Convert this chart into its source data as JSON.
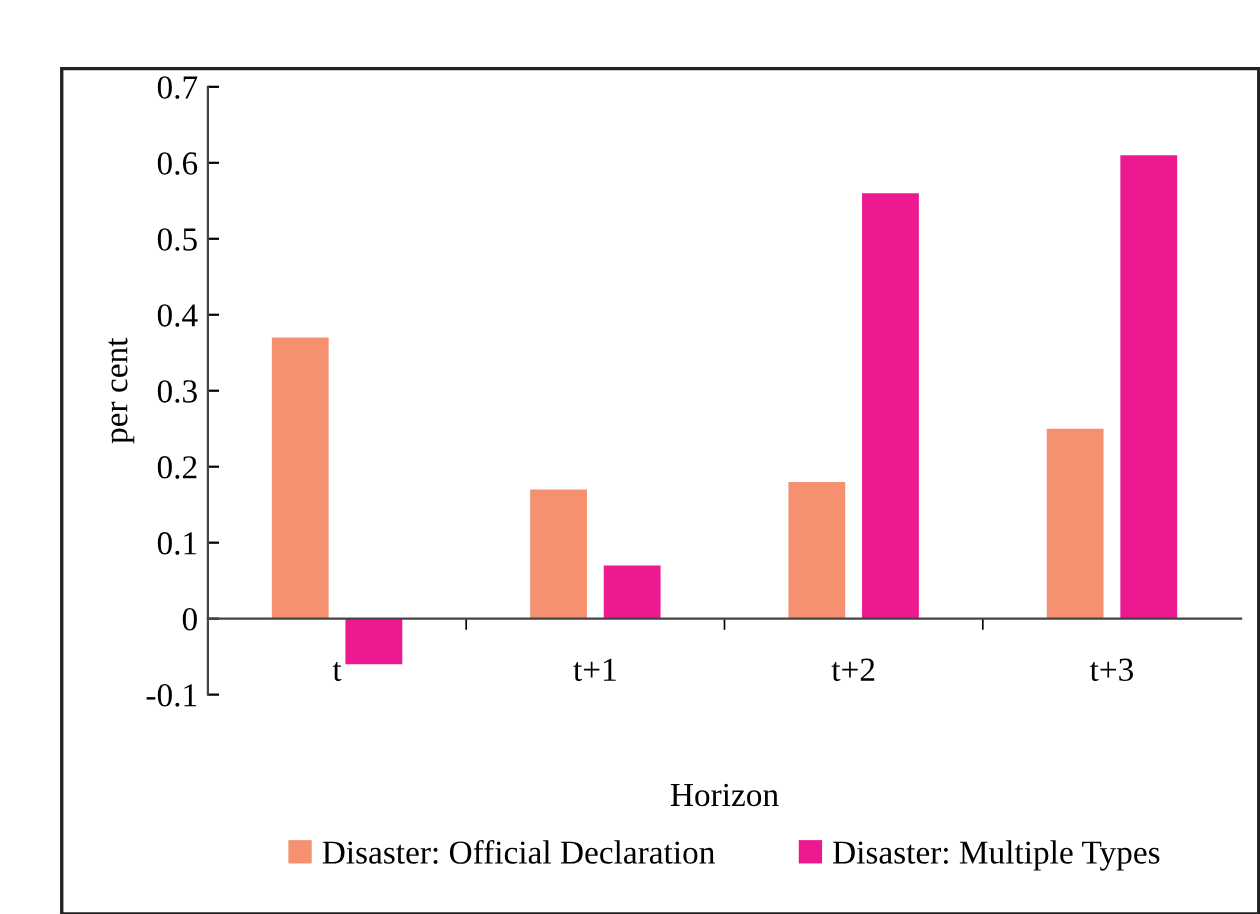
{
  "chart_data": {
    "type": "bar",
    "xlabel": "Horizon",
    "ylabel": "per cent",
    "categories": [
      "t",
      "t+1",
      "t+2",
      "t+3"
    ],
    "series": [
      {
        "name": "Disaster: Official Declaration",
        "color": "#f59170",
        "values": [
          0.37,
          0.17,
          0.18,
          0.25
        ]
      },
      {
        "name": "Disaster: Multiple Types",
        "color": "#ed1991",
        "values": [
          -0.06,
          0.07,
          0.56,
          0.61
        ]
      }
    ],
    "ylim": [
      -0.1,
      0.7
    ],
    "yticks": [
      {
        "value": -0.1,
        "label": "-0.1"
      },
      0,
      0.1,
      0.2,
      0.3,
      0.4,
      0.5,
      0.6,
      0.7
    ],
    "grid": false,
    "legend": "bottom"
  }
}
